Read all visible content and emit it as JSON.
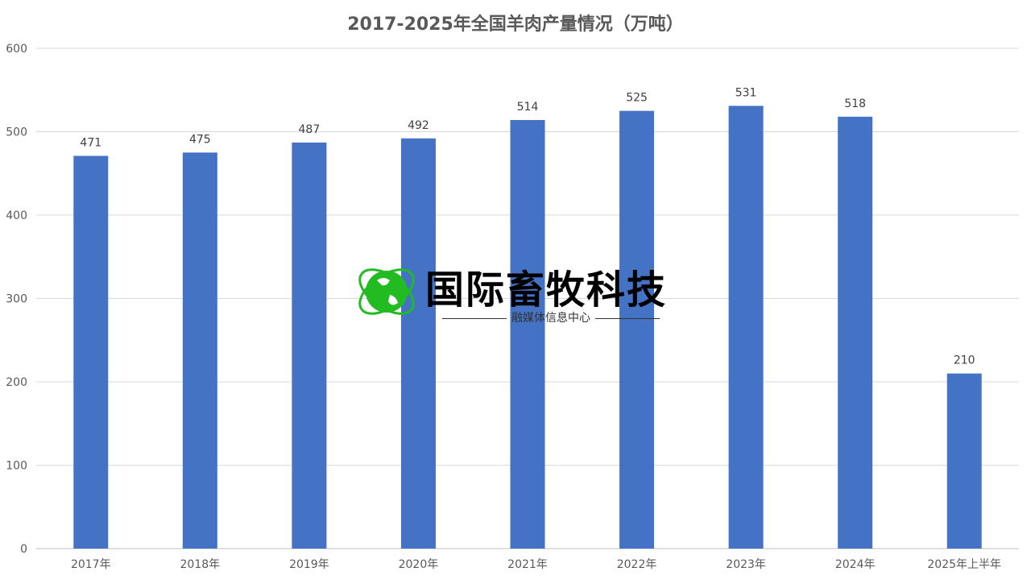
{
  "chart_data": {
    "type": "bar",
    "title": "2017-2025年全国羊肉产量情况（万吨）",
    "categories": [
      "2017年",
      "2018年",
      "2019年",
      "2020年",
      "2021年",
      "2022年",
      "2023年",
      "2024年",
      "2025年上半年"
    ],
    "values": [
      471,
      475,
      487,
      492,
      514,
      525,
      531,
      518,
      210
    ],
    "ylim": [
      0,
      600
    ],
    "yticks": [
      0,
      100,
      200,
      300,
      400,
      500,
      600
    ],
    "grid": true,
    "bar_color": "#4472C4",
    "data_labels": true
  },
  "watermark": {
    "title": "国际畜牧科技",
    "subtitle": "融媒体信息中心",
    "logo_color": "#22BB22"
  }
}
